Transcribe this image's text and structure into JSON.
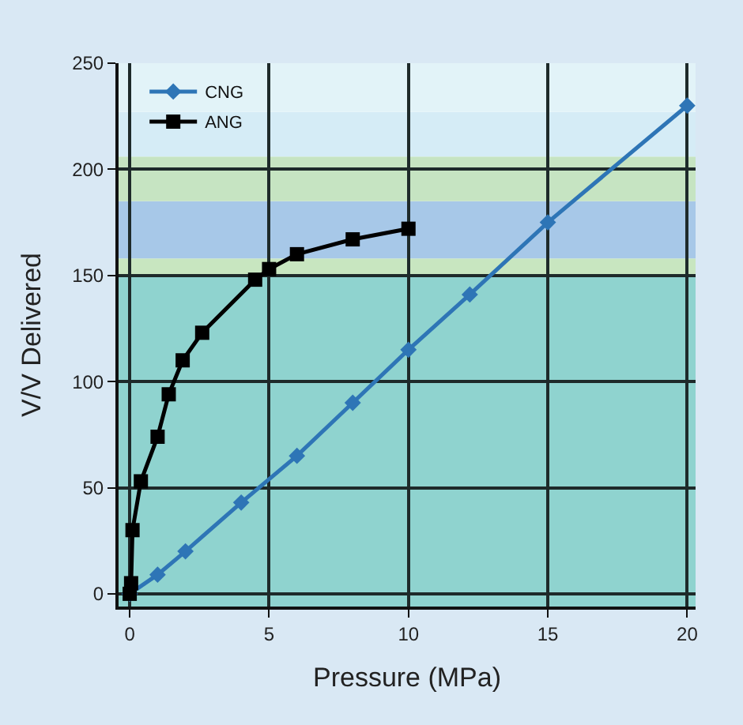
{
  "chart_data": {
    "type": "line",
    "xlabel": "Pressure (MPa)",
    "ylabel": "V/V Delivered",
    "series": [
      {
        "name": "CNG",
        "color": "#2e75b6",
        "marker": "diamond",
        "x": [
          0,
          1,
          2,
          4,
          6,
          8,
          10,
          12.2,
          15,
          20
        ],
        "values": [
          0,
          9,
          20,
          43,
          65,
          90,
          115,
          141,
          175,
          230
        ]
      },
      {
        "name": "ANG",
        "color": "#000000",
        "marker": "square",
        "x": [
          0,
          0.05,
          0.1,
          0.4,
          1,
          1.4,
          1.9,
          2.6,
          4.5,
          5,
          6,
          8,
          10
        ],
        "values": [
          0,
          5,
          30,
          53,
          74,
          94,
          110,
          123,
          148,
          153,
          160,
          167,
          172
        ]
      }
    ],
    "xlim": [
      -0.4,
      20.3
    ],
    "ylim": [
      -6,
      250
    ],
    "xticks": [
      0,
      5,
      10,
      15,
      20
    ],
    "yticks": [
      0,
      50,
      100,
      150,
      200,
      250
    ],
    "grid": true,
    "legend": "top left",
    "bands": [
      {
        "axis": "y",
        "from": -6,
        "to": 150,
        "color": "#8fd3cf"
      },
      {
        "axis": "y",
        "from": 150,
        "to": 158,
        "color": "#c8e6c0"
      },
      {
        "axis": "y",
        "from": 158,
        "to": 185,
        "color": "#a7c8e8"
      },
      {
        "axis": "y",
        "from": 185,
        "to": 206,
        "color": "#c6e4c2"
      },
      {
        "axis": "y",
        "from": 206,
        "to": 227,
        "color": "#d5ecf6"
      },
      {
        "axis": "y",
        "from": 227,
        "to": 250,
        "color": "#e2f3f8"
      }
    ]
  }
}
